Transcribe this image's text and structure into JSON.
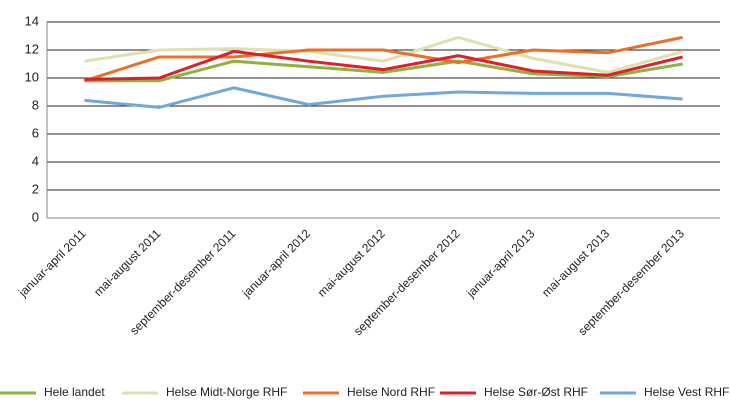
{
  "chart_data": {
    "type": "line",
    "categories": [
      "januar-april 2011",
      "mai-august 2011",
      "september-desember 2011",
      "januar-april 2012",
      "mai-august 2012",
      "september-desember 2012",
      "januar-april 2013",
      "mai-august 2013",
      "september-desember 2013"
    ],
    "series": [
      {
        "name": "Hele landet",
        "color": "#8db33a",
        "values": [
          9.8,
          9.8,
          11.2,
          10.8,
          10.4,
          11.2,
          10.3,
          10.1,
          11.0
        ]
      },
      {
        "name": "Helse Midt-Norge RHF",
        "color": "#dfe0b0",
        "values": [
          11.2,
          12.0,
          12.1,
          11.9,
          11.2,
          12.9,
          11.4,
          10.4,
          11.9
        ]
      },
      {
        "name": "Helse Nord RHF",
        "color": "#e8702a",
        "values": [
          9.8,
          11.5,
          11.5,
          12.0,
          12.0,
          11.1,
          12.0,
          11.8,
          12.9
        ]
      },
      {
        "name": "Helse Sør-Øst RHF",
        "color": "#d9212f",
        "values": [
          9.9,
          10.0,
          11.9,
          11.2,
          10.6,
          11.6,
          10.5,
          10.2,
          11.5
        ]
      },
      {
        "name": "Helse Vest RHF",
        "color": "#6fa8dc",
        "values": [
          8.4,
          7.9,
          9.3,
          8.1,
          8.7,
          9.0,
          8.9,
          8.9,
          8.5
        ]
      }
    ],
    "ylim": [
      0,
      14
    ],
    "yticks": [
      0,
      2,
      4,
      6,
      8,
      10,
      12,
      14
    ],
    "grid": true
  }
}
